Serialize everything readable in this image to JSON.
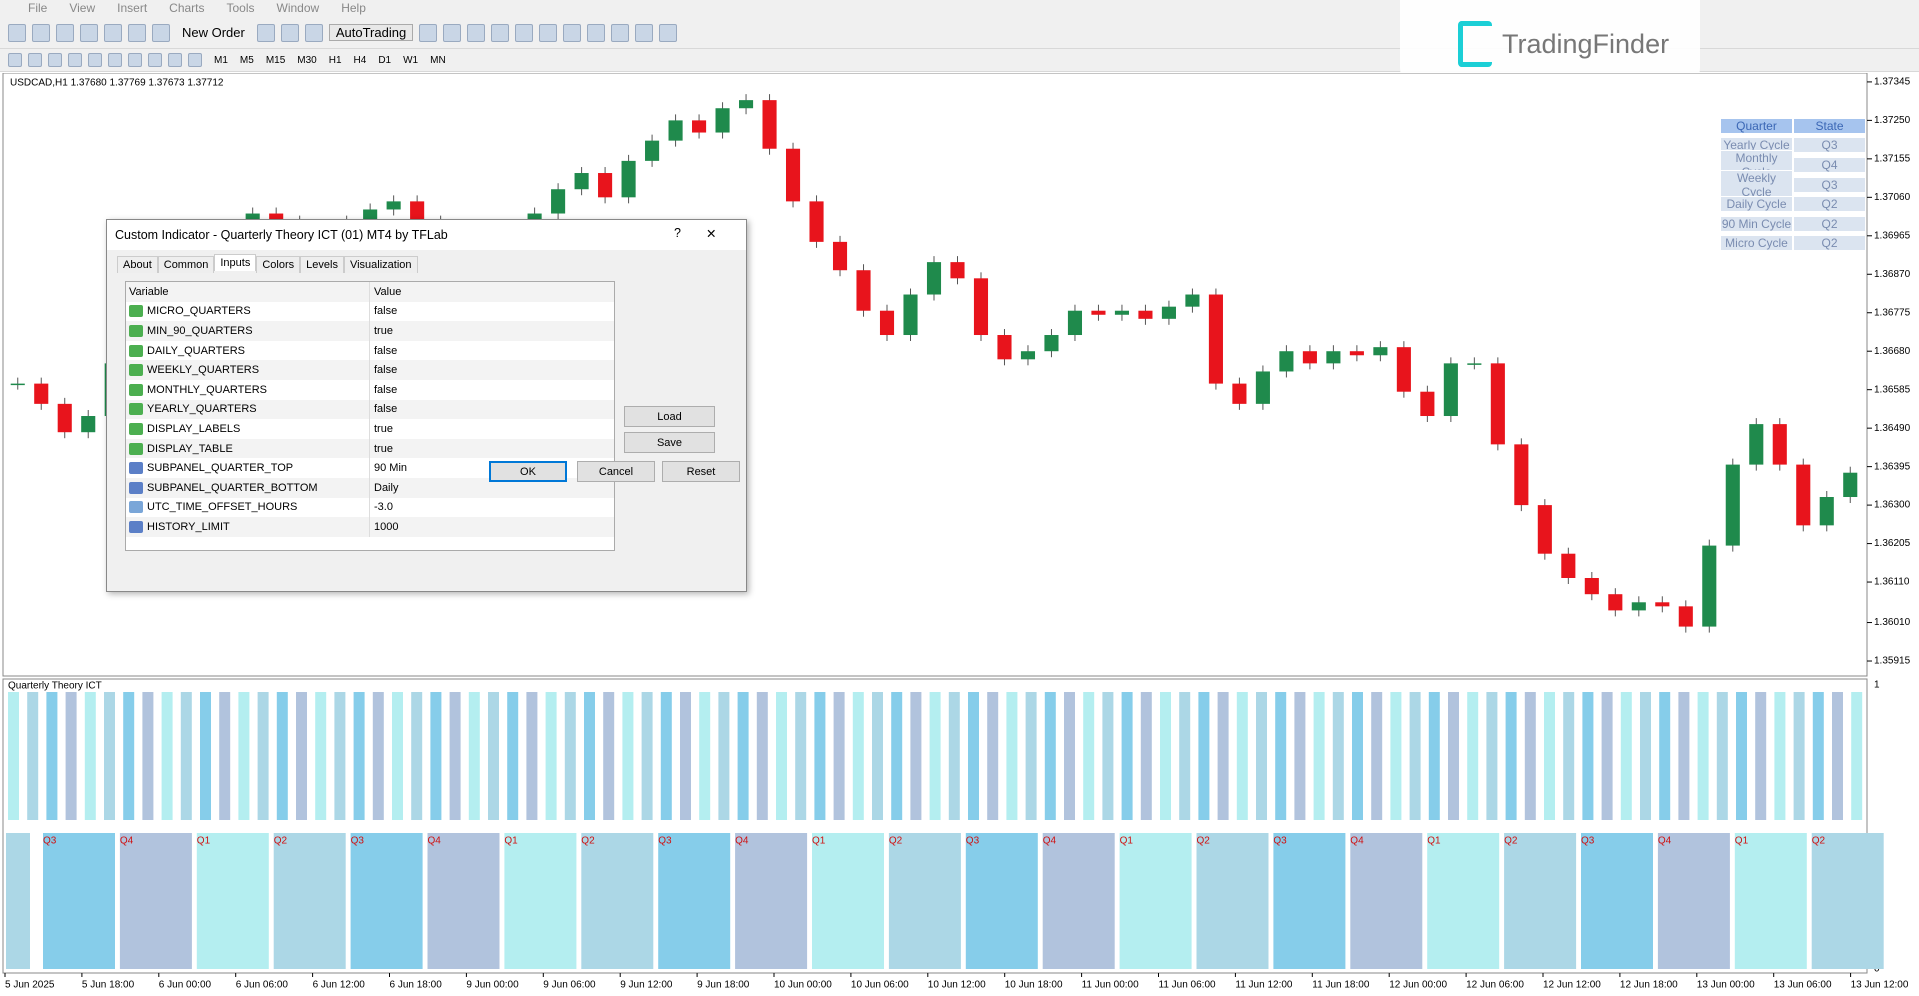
{
  "menu": [
    "File",
    "View",
    "Insert",
    "Charts",
    "Tools",
    "Window",
    "Help"
  ],
  "toolbar": {
    "new_order": "New Order",
    "autotrading": "AutoTrading",
    "timeframes": [
      "M1",
      "M5",
      "M15",
      "M30",
      "H1",
      "H4",
      "D1",
      "W1",
      "MN"
    ]
  },
  "logo": "TradingFinder",
  "chart": {
    "header": "USDCAD,H1  1.37680 1.37769 1.37673 1.37712",
    "ylim": [
      1.35878,
      1.37367
    ],
    "yticks": [
      1.37345,
      {
        "value": 1.3725,
        "label": "1.37250"
      },
      1.37155,
      {
        "value": 1.3706,
        "label": "1.37060"
      },
      1.36965,
      {
        "value": 1.3687,
        "label": "1.36870"
      },
      1.36775,
      {
        "value": 1.3668,
        "label": "1.36680"
      },
      1.36585,
      {
        "value": 1.3649,
        "label": "1.36490"
      },
      1.36395,
      {
        "value": 1.363,
        "label": "1.36300"
      },
      1.36205,
      {
        "value": 1.3611,
        "label": "1.36110"
      },
      {
        "value": 1.3601,
        "label": "1.36010"
      },
      1.35915
    ],
    "closes": [
      1.366,
      1.3655,
      1.3648,
      1.3652,
      1.3665,
      1.3668,
      1.367,
      1.368,
      1.369,
      1.3698,
      1.3702,
      1.37,
      1.3695,
      1.3698,
      1.37,
      1.3703,
      1.3705,
      1.37,
      1.369,
      1.3692,
      1.3695,
      1.3697,
      1.3702,
      1.3708,
      1.3712,
      1.3706,
      1.3715,
      1.372,
      1.3725,
      1.3722,
      1.3728,
      1.373,
      1.3718,
      1.3705,
      1.3695,
      1.3688,
      1.3678,
      1.3672,
      1.3682,
      1.369,
      1.3686,
      1.3672,
      1.3666,
      1.3668,
      1.3672,
      1.3678,
      1.3677,
      1.3678,
      1.3676,
      1.3679,
      1.3682,
      1.366,
      1.3655,
      1.3663,
      1.3668,
      1.3665,
      1.3668,
      1.3667,
      1.3669,
      1.3658,
      1.3652,
      1.3665,
      1.3665,
      1.3645,
      1.363,
      1.3618,
      1.3612,
      1.3608,
      1.3604,
      1.3606,
      1.3605,
      1.36,
      1.362,
      1.364,
      1.365,
      1.364,
      1.3625,
      1.3632,
      1.3638
    ],
    "up_color": "#1f8a4c",
    "down_color": "#e8141c",
    "xticks": [
      "5 Jun 2025",
      "5 Jun 18:00",
      "6 Jun 00:00",
      "6 Jun 06:00",
      "6 Jun 12:00",
      "6 Jun 18:00",
      "9 Jun 00:00",
      "9 Jun 06:00",
      "9 Jun 12:00",
      "9 Jun 18:00",
      "10 Jun 00:00",
      "10 Jun 06:00",
      "10 Jun 12:00",
      "10 Jun 18:00",
      "11 Jun 00:00",
      "11 Jun 06:00",
      "11 Jun 12:00",
      "11 Jun 18:00",
      "12 Jun 00:00",
      "12 Jun 06:00",
      "12 Jun 12:00",
      "12 Jun 18:00",
      "13 Jun 00:00",
      "13 Jun 06:00",
      "13 Jun 12:00"
    ]
  },
  "subpanel": {
    "title": "Quarterly Theory ICT",
    "yticks": [
      1,
      0
    ],
    "blocks": [
      "Q3",
      "Q4",
      "Q1",
      "Q2",
      "Q3",
      "Q4",
      "Q1",
      "Q2",
      "Q3",
      "Q4",
      "Q1",
      "Q2",
      "Q3",
      "Q4",
      "Q1",
      "Q2",
      "Q3",
      "Q4",
      "Q1",
      "Q2",
      "Q3",
      "Q4",
      "Q1",
      "Q2"
    ],
    "colors": {
      "Q1": "#b4eef0",
      "Q2": "#acd7e6",
      "Q3": "#86cdea",
      "Q4": "#b1c3dd"
    }
  },
  "state_table": {
    "headers": [
      "Quarter",
      "State"
    ],
    "rows": [
      [
        "Yearly Cycle",
        "Q3"
      ],
      [
        "Monthly Cycle",
        "Q4"
      ],
      [
        "Weekly Cycle",
        "Q3"
      ],
      [
        "Daily Cycle",
        "Q2"
      ],
      [
        "90 Min Cycle",
        "Q2"
      ],
      [
        "Micro Cycle",
        "Q2"
      ]
    ]
  },
  "dialog": {
    "title": "Custom Indicator - Quarterly Theory ICT (01) MT4 by TFLab",
    "help": "?",
    "close": "✕",
    "tabs": [
      "About",
      "Common",
      "Inputs",
      "Colors",
      "Levels",
      "Visualization"
    ],
    "active_tab": 2,
    "headers": [
      "Variable",
      "Value"
    ],
    "rows": [
      {
        "kind": "bool",
        "name": "MICRO_QUARTERS",
        "value": "false"
      },
      {
        "kind": "bool",
        "name": "MIN_90_QUARTERS",
        "value": "true"
      },
      {
        "kind": "bool",
        "name": "DAILY_QUARTERS",
        "value": "false"
      },
      {
        "kind": "bool",
        "name": "WEEKLY_QUARTERS",
        "value": "false"
      },
      {
        "kind": "bool",
        "name": "MONTHLY_QUARTERS",
        "value": "false"
      },
      {
        "kind": "bool",
        "name": "YEARLY_QUARTERS",
        "value": "false"
      },
      {
        "kind": "bool",
        "name": "DISPLAY_LABELS",
        "value": "true"
      },
      {
        "kind": "bool",
        "name": "DISPLAY_TABLE",
        "value": "true"
      },
      {
        "kind": "int",
        "name": "SUBPANEL_QUARTER_TOP",
        "value": "90 Min"
      },
      {
        "kind": "int",
        "name": "SUBPANEL_QUARTER_BOTTOM",
        "value": "Daily"
      },
      {
        "kind": "double",
        "name": "UTC_TIME_OFFSET_HOURS",
        "value": "-3.0"
      },
      {
        "kind": "int",
        "name": "HISTORY_LIMIT",
        "value": "1000"
      }
    ],
    "buttons": {
      "load": "Load",
      "save": "Save",
      "ok": "OK",
      "cancel": "Cancel",
      "reset": "Reset"
    }
  }
}
